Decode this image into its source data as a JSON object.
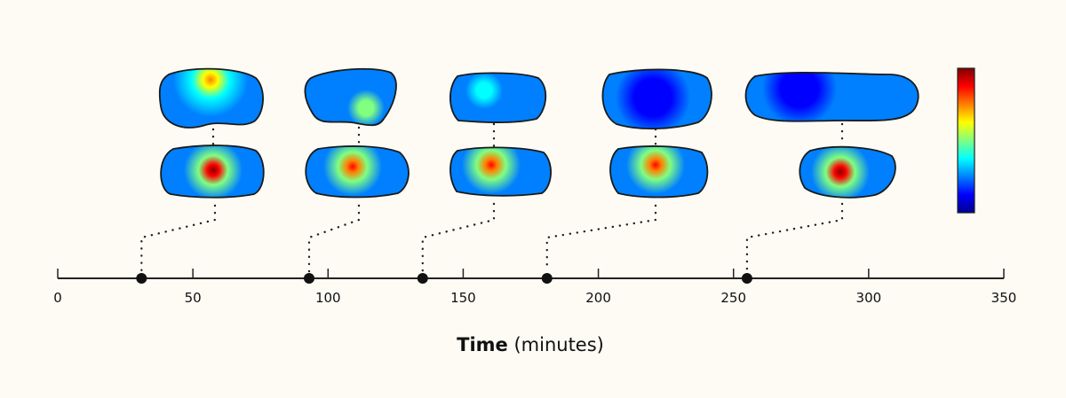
{
  "axis": {
    "ticks": [
      0,
      50,
      100,
      150,
      200,
      250,
      300,
      350
    ],
    "tick_labels": [
      "0",
      "50",
      "100",
      "150",
      "200",
      "250",
      "300",
      "350"
    ],
    "range": [
      0,
      350
    ],
    "title_bold": "Time",
    "title_unit": "(minutes)"
  },
  "timepoints": [
    31,
    93,
    135,
    181,
    255
  ],
  "cell_peaks": [
    {
      "top": 0.72,
      "bottom": 0.97
    },
    {
      "top": 0.55,
      "bottom": 0.92
    },
    {
      "top": 0.4,
      "bottom": 0.85
    },
    {
      "top": 0.1,
      "bottom": 0.93
    },
    {
      "top": 0.12,
      "bottom": 0.98
    }
  ],
  "colorbar": {
    "colormap": "jet",
    "colors": [
      "#00008f",
      "#0000ff",
      "#0080ff",
      "#00ffff",
      "#80ff80",
      "#ffff00",
      "#ff8000",
      "#ff0000",
      "#800000"
    ]
  },
  "colors": {
    "background": "#fdfbf4",
    "ink": "#111111"
  }
}
